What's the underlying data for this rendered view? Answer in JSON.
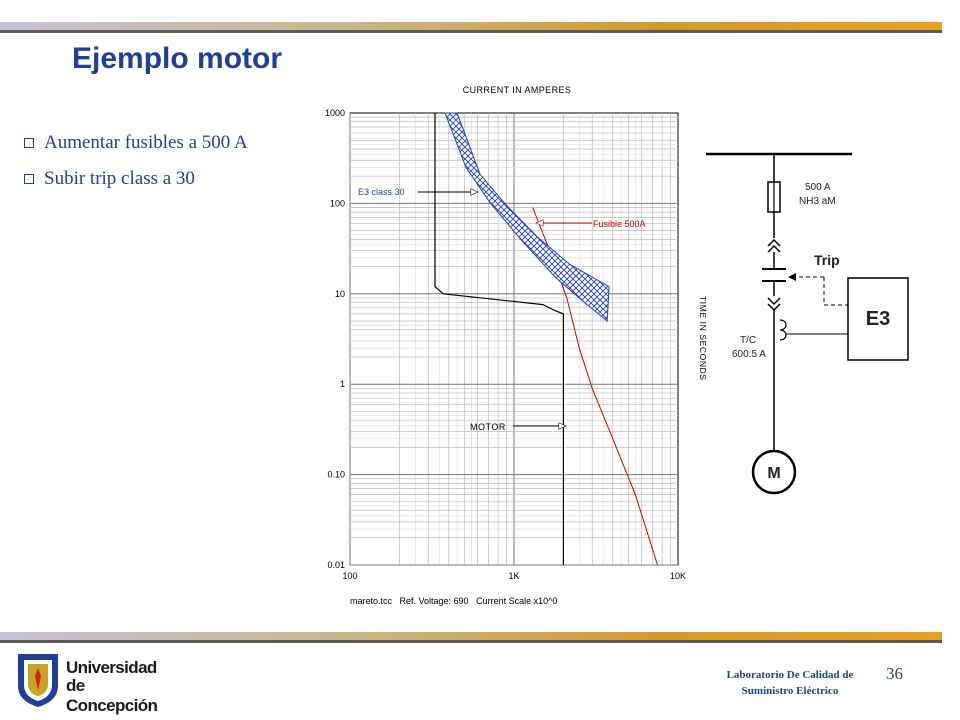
{
  "slide": {
    "title": "Ejemplo motor",
    "bullets": [
      "Aumentar fusibles a 500 A",
      "Subir trip class a 30"
    ],
    "page_number": "36"
  },
  "chart_data": {
    "type": "line",
    "title": "CURRENT IN AMPERES",
    "xlabel": "CURRENT IN AMPERES",
    "ylabel": "TIME IN SECONDS",
    "x_scale": "log",
    "y_scale": "log",
    "xlim": [
      100,
      10000
    ],
    "ylim": [
      0.01,
      1000
    ],
    "x_ticks": [
      {
        "value": 100,
        "label": "100"
      },
      {
        "value": 1000,
        "label": "1K"
      },
      {
        "value": 10000,
        "label": "10K"
      }
    ],
    "y_ticks": [
      {
        "value": 1000,
        "label": "1000"
      },
      {
        "value": 100,
        "label": "100"
      },
      {
        "value": 10,
        "label": "10"
      },
      {
        "value": 1,
        "label": "1"
      },
      {
        "value": 0.1,
        "label": "0.10"
      },
      {
        "value": 0.01,
        "label": "0.01"
      }
    ],
    "grid": true,
    "series": [
      {
        "name": "MOTOR",
        "color": "#000000",
        "points": [
          [
            330,
            1000
          ],
          [
            330,
            12
          ],
          [
            370,
            10
          ],
          [
            1500,
            7.6
          ],
          [
            1750,
            6.6
          ],
          [
            2000,
            6
          ],
          [
            2000,
            0.01
          ]
        ]
      },
      {
        "name": "Fusible 500A",
        "color": "#cc0000",
        "points": [
          [
            1300,
            90
          ],
          [
            1650,
            30
          ],
          [
            2100,
            9
          ],
          [
            2500,
            2.5
          ],
          [
            3000,
            0.9
          ],
          [
            4000,
            0.25
          ],
          [
            5500,
            0.06
          ],
          [
            7500,
            0.01
          ]
        ]
      },
      {
        "name": "E3 class 30",
        "color": "#1f3fbf",
        "band": true,
        "upper": [
          [
            450,
            1000
          ],
          [
            620,
            210
          ],
          [
            900,
            95
          ],
          [
            1400,
            42
          ],
          [
            2200,
            21
          ],
          [
            3800,
            12
          ]
        ],
        "lower": [
          [
            380,
            1000
          ],
          [
            510,
            250
          ],
          [
            720,
            100
          ],
          [
            1100,
            40
          ],
          [
            1800,
            15
          ],
          [
            2700,
            8
          ],
          [
            3700,
            5
          ]
        ]
      }
    ],
    "annotations": [
      {
        "label": "E3 class 30",
        "color": "#1f3fbf"
      },
      {
        "label": "Fusible 500A",
        "color": "#cc0000"
      },
      {
        "label": "MOTOR",
        "color": "#000000"
      }
    ],
    "footer": "mareto.tcc   Ref. Voltage: 690   Current Scale x10^0"
  },
  "one_line": {
    "fuse_label_1": "500 A",
    "fuse_label_2": "NH3 aM",
    "trip_label": "Trip",
    "relay_label": "E3",
    "ct_label_1": "T/C",
    "ct_label_2": "600:5 A",
    "motor_label": "M"
  },
  "footer": {
    "university_line1": "Universidad",
    "university_line2": "de Concepción",
    "lab_line1": "Laboratorio De Calidad de",
    "lab_line2": "Suministro Eléctrico"
  },
  "colors": {
    "accent": "#1f3f9a",
    "fuse": "#cc0000",
    "e3": "#1f3fbf",
    "bar_orange": "#e8a020"
  }
}
